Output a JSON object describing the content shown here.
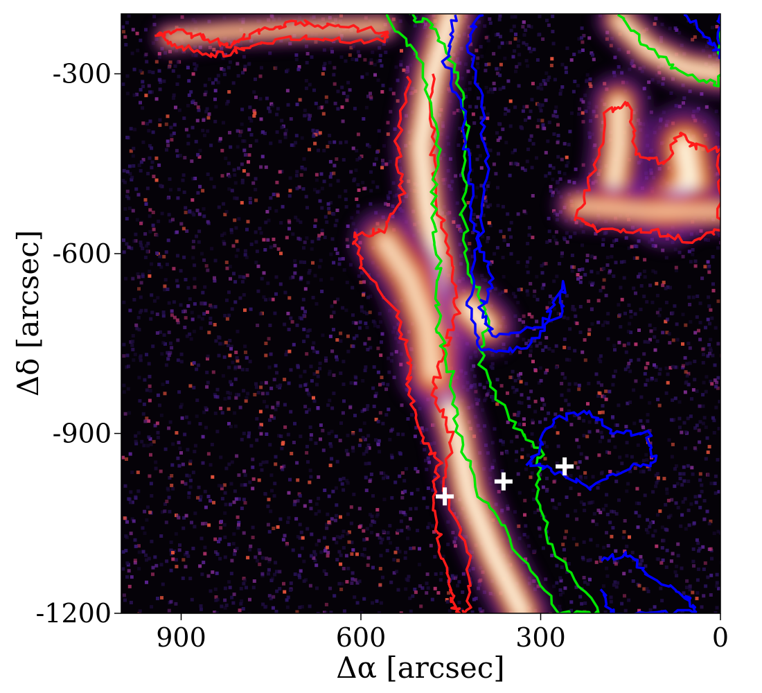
{
  "chart_data": {
    "type": "heatmap",
    "title": "",
    "xlabel": "Δα [arcsec]",
    "ylabel": "Δδ [arcsec]",
    "xlim": [
      1000,
      0
    ],
    "ylim": [
      -1200,
      -200
    ],
    "x_ticks": [
      {
        "value": 900,
        "label": "900"
      },
      {
        "value": 600,
        "label": "600"
      },
      {
        "value": 300,
        "label": "300"
      },
      {
        "value": 0,
        "label": "0"
      }
    ],
    "y_ticks": [
      {
        "value": -300,
        "label": "-300"
      },
      {
        "value": -600,
        "label": "-600"
      },
      {
        "value": -900,
        "label": "-900"
      },
      {
        "value": -1200,
        "label": "-1200"
      }
    ],
    "grid": false,
    "colormap": "inferno-like (black-purple-orange-white)",
    "filaments": [
      {
        "name": "main-ridge",
        "width": 38,
        "intensity": 1.0,
        "path": [
          [
            450,
            -200
          ],
          [
            480,
            -300
          ],
          [
            500,
            -420
          ],
          [
            490,
            -520
          ],
          [
            470,
            -620
          ],
          [
            460,
            -720
          ],
          [
            470,
            -800
          ],
          [
            440,
            -900
          ],
          [
            420,
            -1000
          ],
          [
            380,
            -1100
          ],
          [
            330,
            -1200
          ]
        ]
      },
      {
        "name": "west-lobe",
        "width": 45,
        "intensity": 0.75,
        "path": [
          [
            560,
            -580
          ],
          [
            520,
            -640
          ],
          [
            490,
            -720
          ],
          [
            480,
            -800
          ]
        ]
      },
      {
        "name": "top-band",
        "width": 22,
        "intensity": 0.6,
        "path": [
          [
            920,
            -240
          ],
          [
            820,
            -230
          ],
          [
            700,
            -225
          ],
          [
            560,
            -222
          ]
        ]
      },
      {
        "name": "ne-arc",
        "width": 30,
        "intensity": 0.9,
        "path": [
          [
            170,
            -210
          ],
          [
            120,
            -260
          ],
          [
            60,
            -290
          ],
          [
            0,
            -300
          ]
        ]
      },
      {
        "name": "ne-clump-1",
        "width": 40,
        "intensity": 0.85,
        "path": [
          [
            170,
            -350
          ],
          [
            170,
            -420
          ],
          [
            180,
            -500
          ]
        ]
      },
      {
        "name": "ne-clump-2",
        "width": 55,
        "intensity": 0.95,
        "path": [
          [
            60,
            -420
          ],
          [
            50,
            -480
          ],
          [
            90,
            -520
          ]
        ]
      },
      {
        "name": "ne-bar",
        "width": 30,
        "intensity": 0.6,
        "path": [
          [
            240,
            -520
          ],
          [
            120,
            -530
          ],
          [
            0,
            -530
          ]
        ]
      },
      {
        "name": "knot",
        "width": 40,
        "intensity": 1.0,
        "path": [
          [
            420,
            -690
          ],
          [
            390,
            -720
          ]
        ]
      }
    ],
    "contours": [
      {
        "color": "#ff1a1a",
        "points": [
          [
            940,
            -235
          ],
          [
            900,
            -230
          ],
          [
            860,
            -240
          ],
          [
            820,
            -255
          ],
          [
            790,
            -235
          ],
          [
            740,
            -220
          ],
          [
            700,
            -215
          ],
          [
            640,
            -222
          ],
          [
            560,
            -230
          ],
          [
            560,
            -245
          ],
          [
            640,
            -242
          ],
          [
            720,
            -240
          ],
          [
            790,
            -255
          ],
          [
            840,
            -270
          ],
          [
            900,
            -255
          ],
          [
            940,
            -235
          ]
        ]
      },
      {
        "color": "#ff1a1a",
        "points": [
          [
            520,
            -300
          ],
          [
            540,
            -420
          ],
          [
            530,
            -500
          ],
          [
            560,
            -560
          ],
          [
            610,
            -570
          ],
          [
            600,
            -620
          ],
          [
            540,
            -700
          ],
          [
            520,
            -780
          ],
          [
            520,
            -830
          ],
          [
            500,
            -900
          ],
          [
            470,
            -950
          ],
          [
            480,
            -1000
          ],
          [
            470,
            -1080
          ],
          [
            450,
            -1160
          ],
          [
            440,
            -1200
          ],
          [
            420,
            -1200
          ],
          [
            420,
            -1100
          ],
          [
            460,
            -1000
          ],
          [
            450,
            -900
          ],
          [
            480,
            -830
          ],
          [
            460,
            -760
          ],
          [
            440,
            -700
          ],
          [
            450,
            -620
          ],
          [
            470,
            -520
          ],
          [
            480,
            -420
          ],
          [
            480,
            -300
          ]
        ]
      },
      {
        "color": "#ff1a1a",
        "points": [
          [
            240,
            -540
          ],
          [
            210,
            -460
          ],
          [
            190,
            -360
          ],
          [
            150,
            -350
          ],
          [
            140,
            -430
          ],
          [
            90,
            -450
          ],
          [
            70,
            -400
          ],
          [
            40,
            -420
          ],
          [
            0,
            -430
          ],
          [
            0,
            -560
          ],
          [
            50,
            -580
          ],
          [
            120,
            -560
          ],
          [
            200,
            -560
          ],
          [
            240,
            -540
          ]
        ]
      },
      {
        "color": "#00e600",
        "points": [
          [
            560,
            -200
          ],
          [
            500,
            -280
          ],
          [
            470,
            -400
          ],
          [
            480,
            -520
          ],
          [
            470,
            -620
          ],
          [
            470,
            -720
          ],
          [
            450,
            -800
          ],
          [
            440,
            -900
          ],
          [
            400,
            -1000
          ],
          [
            350,
            -1080
          ],
          [
            270,
            -1200
          ],
          [
            200,
            -1200
          ],
          [
            280,
            -1090
          ],
          [
            310,
            -1000
          ],
          [
            300,
            -930
          ],
          [
            350,
            -880
          ],
          [
            400,
            -790
          ],
          [
            390,
            -700
          ],
          [
            420,
            -620
          ],
          [
            430,
            -520
          ],
          [
            420,
            -400
          ],
          [
            440,
            -300
          ],
          [
            480,
            -220
          ],
          [
            520,
            -200
          ]
        ]
      },
      {
        "color": "#00e600",
        "points": [
          [
            170,
            -200
          ],
          [
            120,
            -260
          ],
          [
            60,
            -300
          ],
          [
            0,
            -320
          ],
          [
            0,
            -200
          ]
        ]
      },
      {
        "color": "#0000ff",
        "points": [
          [
            440,
            -200
          ],
          [
            460,
            -280
          ],
          [
            430,
            -360
          ],
          [
            420,
            -460
          ],
          [
            410,
            -560
          ],
          [
            380,
            -640
          ],
          [
            400,
            -700
          ],
          [
            380,
            -740
          ],
          [
            300,
            -720
          ],
          [
            260,
            -650
          ],
          [
            270,
            -700
          ],
          [
            330,
            -760
          ],
          [
            400,
            -760
          ],
          [
            420,
            -680
          ],
          [
            400,
            -560
          ],
          [
            390,
            -450
          ],
          [
            400,
            -350
          ],
          [
            420,
            -240
          ],
          [
            400,
            -200
          ]
        ]
      },
      {
        "color": "#0000ff",
        "points": [
          [
            320,
            -950
          ],
          [
            280,
            -880
          ],
          [
            220,
            -860
          ],
          [
            180,
            -900
          ],
          [
            120,
            -900
          ],
          [
            110,
            -950
          ],
          [
            160,
            -960
          ],
          [
            220,
            -990
          ],
          [
            280,
            -960
          ],
          [
            320,
            -950
          ]
        ]
      },
      {
        "color": "#0000ff",
        "points": [
          [
            200,
            -1110
          ],
          [
            150,
            -1100
          ],
          [
            120,
            -1140
          ],
          [
            60,
            -1170
          ],
          [
            40,
            -1200
          ],
          [
            180,
            -1200
          ],
          [
            200,
            -1160
          ]
        ]
      },
      {
        "color": "#0000ff",
        "points": [
          [
            60,
            -200
          ],
          [
            20,
            -240
          ],
          [
            0,
            -270
          ],
          [
            0,
            -200
          ]
        ]
      }
    ],
    "markers": [
      {
        "x": 460,
        "y": -1005,
        "symbol": "+",
        "color": "#ffffff"
      },
      {
        "x": 362,
        "y": -980,
        "symbol": "+",
        "color": "#ffffff"
      },
      {
        "x": 260,
        "y": -955,
        "symbol": "+",
        "color": "#ffffff"
      }
    ]
  }
}
